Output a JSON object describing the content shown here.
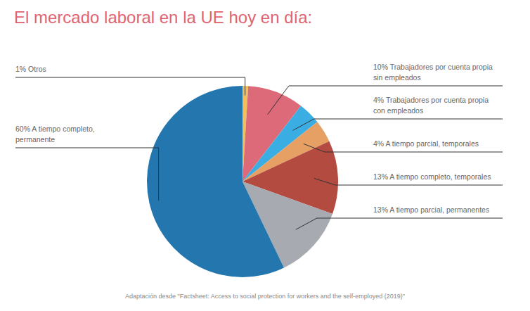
{
  "chart_data": {
    "type": "pie",
    "title": "El mercado laboral en la UE hoy en día:",
    "source": "Adaptación desde \"Factsheet: Access to social protection for workers and the self-employed (2019)\"",
    "categories": [
      "Otros",
      "Trabajadores por cuenta propia sin empleados",
      "Trabajadores por cuenta propia con empleados",
      "A tiempo parcial, temporales",
      "A tiempo completo, temporales",
      "A tiempo parcial, permanentes",
      "A tiempo completo, permanente"
    ],
    "values": [
      1,
      10,
      4,
      4,
      13,
      13,
      60
    ],
    "value_labels": [
      "1%",
      "10%",
      "4%",
      "4%",
      "13%",
      "13%",
      "60%"
    ],
    "colors": [
      "#f1c05e",
      "#dc6a78",
      "#3aaee3",
      "#e6a064",
      "#b34b41",
      "#a7aab1",
      "#2377ae"
    ],
    "data_labels": true
  }
}
